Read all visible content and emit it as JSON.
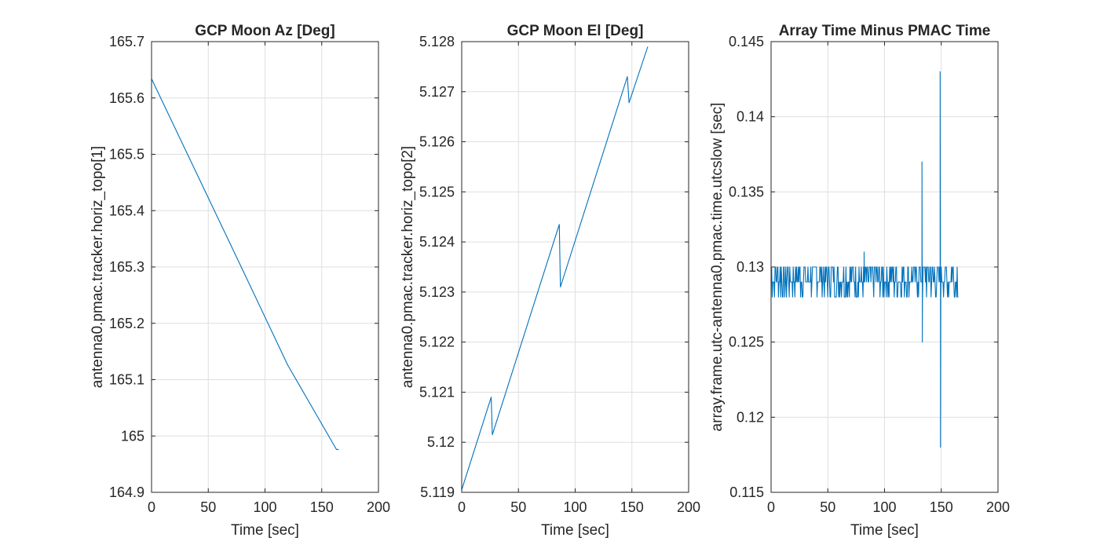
{
  "colors": {
    "series": "#0072BD",
    "axes": "#262626",
    "grid": "#dfdfdf"
  },
  "chart_data": [
    {
      "type": "line",
      "title": "GCP Moon Az [Deg]",
      "xlabel": "Time [sec]",
      "ylabel": "antenna0.pmac.tracker.horiz_topo[1]",
      "xlim": [
        0,
        200
      ],
      "ylim": [
        164.9,
        165.7
      ],
      "grid": true,
      "xticks": [
        "0",
        "50",
        "100",
        "150",
        "200"
      ],
      "yticks": [
        "164.9",
        "165",
        "165.1",
        "165.2",
        "165.3",
        "165.4",
        "165.5",
        "165.6",
        "165.7"
      ],
      "series": [
        {
          "x": [
            0,
            40,
            80,
            120,
            163,
            165
          ],
          "y": [
            165.634,
            165.465,
            165.296,
            165.126,
            164.976,
            164.976
          ]
        }
      ]
    },
    {
      "type": "line",
      "title": "GCP Moon El [Deg]",
      "xlabel": "Time [sec]",
      "ylabel": "antenna0.pmac.tracker.horiz_topo[2]",
      "xlim": [
        0,
        200
      ],
      "ylim": [
        5.119,
        5.128
      ],
      "grid": true,
      "xticks": [
        "0",
        "50",
        "100",
        "150",
        "200"
      ],
      "yticks": [
        "5.119",
        "5.12",
        "5.121",
        "5.122",
        "5.123",
        "5.124",
        "5.125",
        "5.126",
        "5.127",
        "5.128"
      ],
      "series": [
        {
          "x": [
            0,
            26,
            27,
            86,
            87,
            146,
            147.5,
            164
          ],
          "y": [
            5.11905,
            5.1209,
            5.12015,
            5.12435,
            5.1231,
            5.1273,
            5.12678,
            5.1279
          ]
        }
      ]
    },
    {
      "type": "line",
      "title": "Array Time Minus PMAC Time",
      "xlabel": "Time [sec]",
      "ylabel": "array.frame.utc-antenna0.pmac.time.utcslow [sec]",
      "xlim": [
        0,
        200
      ],
      "ylim": [
        0.115,
        0.145
      ],
      "grid": true,
      "xticks": [
        "0",
        "50",
        "100",
        "150",
        "200"
      ],
      "yticks": [
        "0.115",
        "0.12",
        "0.125",
        "0.13",
        "0.135",
        "0.14",
        "0.145"
      ],
      "series": [
        {
          "x_range": [
            0,
            165
          ],
          "levels": [
            0.128,
            0.129,
            0.13
          ],
          "spikes": [
            {
              "x": 82,
              "y": 0.131
            },
            {
              "x": 133,
              "y": 0.137
            },
            {
              "x": 133.3,
              "y": 0.125
            },
            {
              "x": 149,
              "y": 0.143
            },
            {
              "x": 149.3,
              "y": 0.118
            }
          ]
        }
      ]
    }
  ]
}
